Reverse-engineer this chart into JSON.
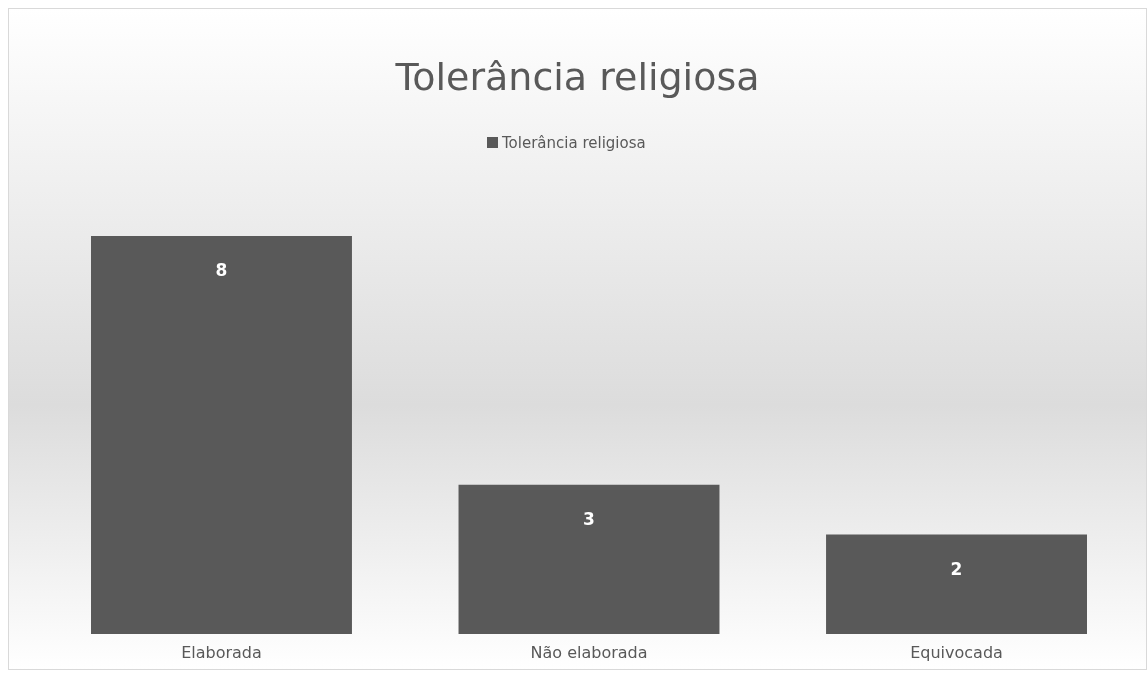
{
  "chart_data": {
    "type": "bar",
    "title": "Tolerância religiosa",
    "categories": [
      "Elaborada",
      "Não elaborada",
      "Equivocada"
    ],
    "series": [
      {
        "name": "Tolerância religiosa",
        "color": "#595959",
        "values": [
          8,
          3,
          2
        ]
      }
    ],
    "data_labels": true,
    "legend": "top",
    "grid": false
  }
}
